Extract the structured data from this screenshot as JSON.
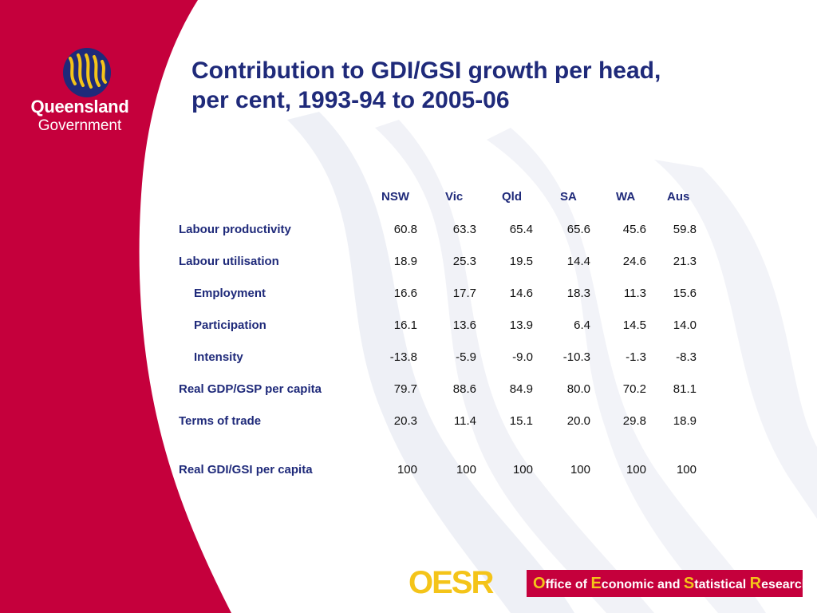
{
  "logo": {
    "name": "Queensland",
    "sub": "Government"
  },
  "title": {
    "line1": "Contribution to GDI/GSI growth per head,",
    "line2": "per cent, 1993-94 to 2005-06"
  },
  "table": {
    "columns": [
      "NSW",
      "Vic",
      "Qld",
      "SA",
      "WA",
      "Aus"
    ],
    "rows": [
      {
        "label": "Labour productivity",
        "values": [
          "60.8",
          "63.3",
          "65.4",
          "65.6",
          "45.6",
          "59.8"
        ]
      },
      {
        "label": "Labour utilisation",
        "values": [
          "18.9",
          "25.3",
          "19.5",
          "14.4",
          "24.6",
          "21.3"
        ]
      },
      {
        "label": "Employment",
        "values": [
          "16.6",
          "17.7",
          "14.6",
          "18.3",
          "11.3",
          "15.6"
        ]
      },
      {
        "label": "Participation",
        "values": [
          "16.1",
          "13.6",
          "13.9",
          "6.4",
          "14.5",
          "14.0"
        ]
      },
      {
        "label": "Intensity",
        "values": [
          "-13.8",
          "-5.9",
          "-9.0",
          "-10.3",
          "-1.3",
          "-8.3"
        ]
      },
      {
        "label": "Real GDP/GSP per capita",
        "values": [
          "79.7",
          "88.6",
          "84.9",
          "80.0",
          "70.2",
          "81.1"
        ]
      },
      {
        "label": "Terms of trade",
        "values": [
          "20.3",
          "11.4",
          "15.1",
          "20.0",
          "29.8",
          "18.9"
        ]
      },
      {
        "label": "Real GDI/GSI per capita",
        "values": [
          "100",
          "100",
          "100",
          "100",
          "100",
          "100"
        ]
      }
    ]
  },
  "footer": {
    "acronym": "OESR",
    "o_cap": "O",
    "o_rest": "ffice of ",
    "e_cap": "E",
    "e_rest": "conomic and ",
    "s_cap": "S",
    "s_rest": "tatistical ",
    "r_cap": "R",
    "r_rest": "esearch"
  },
  "colors": {
    "brand_red": "#c5003c",
    "title_blue": "#1f2a7a",
    "oesr_gold": "#f4c419"
  }
}
